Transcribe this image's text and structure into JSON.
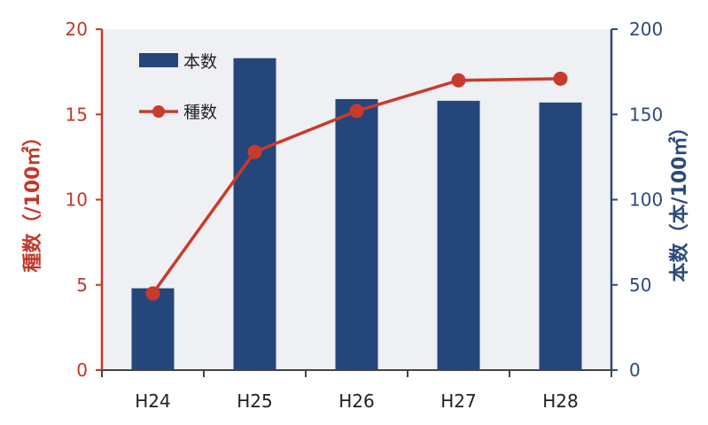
{
  "chart_data": {
    "type": "bar+line",
    "categories": [
      "H24",
      "H25",
      "H26",
      "H27",
      "H28"
    ],
    "series": [
      {
        "name": "本数",
        "type": "bar",
        "axis": "right",
        "values": [
          48,
          183,
          159,
          158,
          157
        ]
      },
      {
        "name": "種数",
        "type": "line",
        "axis": "left",
        "values": [
          4.5,
          12.8,
          15.2,
          17.0,
          17.1
        ]
      }
    ],
    "ylabel_left": "種数（/100㎡）",
    "ylabel_right": "本数（本/100㎡）",
    "ylim_left": [
      0,
      20
    ],
    "ylim_right": [
      0,
      200
    ],
    "yticks_left": [
      "0",
      "5",
      "10",
      "15",
      "20"
    ],
    "yticks_right": [
      "0",
      "50",
      "100",
      "150",
      "200"
    ],
    "grid": false,
    "legend_position": "top-left"
  },
  "colors": {
    "plot_background": "#eef0f3",
    "bar": "#24467a",
    "line": "#c93a2b",
    "left_axis": "#c0392b",
    "right_axis": "#2c4a7a"
  }
}
